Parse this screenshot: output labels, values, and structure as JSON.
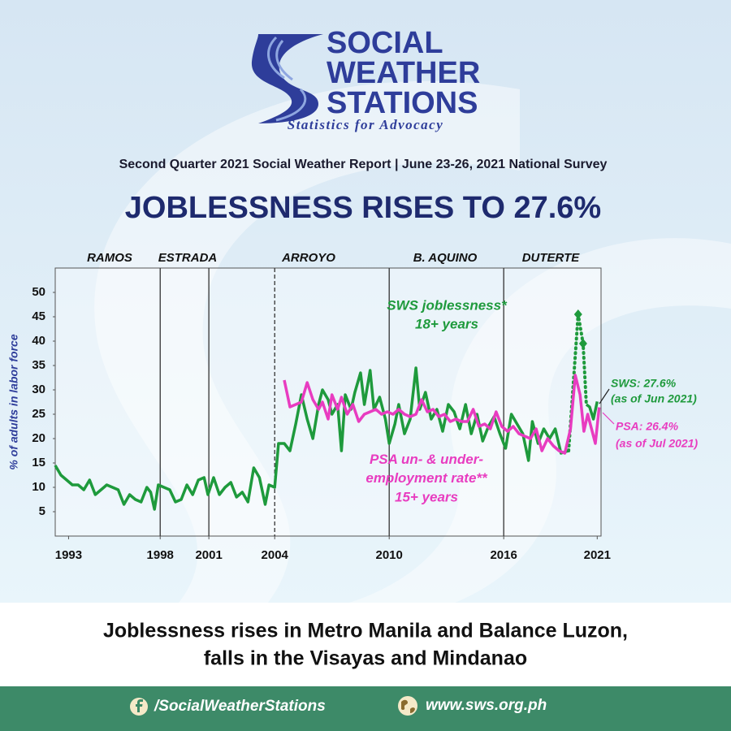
{
  "header": {
    "logo_lines": [
      "SOCIAL",
      "WEATHER",
      "STATIONS"
    ],
    "tagline": "Statistics for Advocacy"
  },
  "report_line": "Second Quarter 2021 Social Weather Report | June 23-26, 2021 National Survey",
  "headline": "JOBLESSNESS RISES TO 27.6%",
  "chart_data": {
    "type": "line",
    "ylabel": "% of adults in labor force",
    "xlim": [
      1993,
      2021.6
    ],
    "ylim": [
      0,
      55
    ],
    "xticks": [
      {
        "value": 1993.7,
        "label": "1993"
      },
      {
        "value": 1998.5,
        "label": "1998"
      },
      {
        "value": 2001.05,
        "label": "2001"
      },
      {
        "value": 2004.5,
        "label": "2004"
      },
      {
        "value": 2010.5,
        "label": "2010"
      },
      {
        "value": 2016.5,
        "label": "2016"
      },
      {
        "value": 2021.4,
        "label": "2021"
      }
    ],
    "yticks": [
      5,
      10,
      15,
      20,
      25,
      30,
      35,
      40,
      45,
      50
    ],
    "grid": false,
    "eras": [
      "RAMOS",
      "ESTRADA",
      "ARROYO",
      "B. AQUINO",
      "DUTERTE"
    ],
    "era_lines": [
      1998.5,
      2001.05,
      2004.5,
      2010.5,
      2016.5
    ],
    "era_line_dashed": [
      false,
      false,
      true,
      false,
      false
    ],
    "series": [
      {
        "name": "SWS joblessness*",
        "note": "18+ years",
        "color": "#1e9a3c",
        "end_label": "SWS: 27.6%",
        "end_note": "(as of Jun 2021)",
        "dotted_between": [
          95,
          98
        ],
        "x": [
          1993.0,
          1993.3,
          1993.6,
          1993.9,
          1994.2,
          1994.5,
          1994.8,
          1995.1,
          1995.4,
          1995.7,
          1996.0,
          1996.3,
          1996.6,
          1996.9,
          1997.2,
          1997.5,
          1997.8,
          1998.0,
          1998.2,
          1998.4,
          1998.7,
          1999.0,
          1999.3,
          1999.6,
          1999.9,
          2000.2,
          2000.5,
          2000.8,
          2001.0,
          2001.3,
          2001.6,
          2001.9,
          2002.2,
          2002.5,
          2002.8,
          2003.1,
          2003.4,
          2003.7,
          2004.0,
          2004.2,
          2004.5,
          2004.7,
          2005.0,
          2005.3,
          2005.6,
          2005.9,
          2006.2,
          2006.5,
          2006.8,
          2007.0,
          2007.3,
          2007.5,
          2007.8,
          2008.0,
          2008.2,
          2008.5,
          2008.7,
          2009.0,
          2009.2,
          2009.5,
          2009.7,
          2010.0,
          2010.3,
          2010.5,
          2010.8,
          2011.0,
          2011.3,
          2011.6,
          2011.9,
          2012.1,
          2012.4,
          2012.7,
          2013.0,
          2013.3,
          2013.6,
          2013.9,
          2014.2,
          2014.5,
          2014.8,
          2015.1,
          2015.4,
          2015.7,
          2016.0,
          2016.3,
          2016.6,
          2016.9,
          2017.2,
          2017.5,
          2017.8,
          2018.0,
          2018.3,
          2018.6,
          2018.9,
          2019.2,
          2019.5,
          2019.9,
          2020.4,
          2020.66,
          2020.83,
          2021.0,
          2021.2,
          2021.4
        ],
        "values": [
          14.5,
          12.5,
          11.5,
          10.5,
          10.5,
          9.5,
          11.5,
          8.5,
          9.5,
          10.5,
          10,
          9.5,
          6.5,
          8.5,
          7.5,
          7,
          10,
          9,
          5.5,
          10.5,
          10,
          9.5,
          7,
          7.5,
          10.5,
          8.5,
          11.5,
          12,
          8.5,
          12,
          8.5,
          10,
          11,
          8,
          9,
          7,
          14,
          12,
          6.5,
          10.5,
          10,
          19,
          19,
          17.5,
          23,
          29,
          24,
          20,
          27,
          30,
          28,
          25,
          27,
          17.5,
          29,
          26,
          29.5,
          33.5,
          27,
          34,
          26,
          28.5,
          24,
          19,
          23,
          27,
          21,
          24,
          34.5,
          26,
          29.5,
          24,
          26,
          21.5,
          27,
          25.5,
          22,
          27,
          21,
          25,
          19.5,
          22.5,
          24.5,
          21,
          18,
          25,
          23,
          21,
          15.5,
          23.5,
          19,
          22,
          20,
          22,
          17,
          17.5,
          45.5,
          39.5,
          27,
          26.5,
          24,
          27.6
        ]
      },
      {
        "name": "PSA un- & under-employment rate**",
        "note": "15+ years",
        "color": "#e83cc0",
        "end_label": "PSA: 26.4%",
        "end_note": "(as of Jul 2021)",
        "x": [
          2005.0,
          2005.3,
          2005.6,
          2005.9,
          2006.2,
          2006.5,
          2006.8,
          2007.0,
          2007.3,
          2007.5,
          2007.8,
          2008.0,
          2008.3,
          2008.6,
          2008.9,
          2009.2,
          2009.5,
          2009.8,
          2010.1,
          2010.4,
          2010.7,
          2011.0,
          2011.3,
          2011.6,
          2011.9,
          2012.2,
          2012.5,
          2012.8,
          2013.1,
          2013.4,
          2013.7,
          2014.0,
          2014.3,
          2014.6,
          2014.9,
          2015.2,
          2015.5,
          2015.8,
          2016.1,
          2016.4,
          2016.7,
          2017.0,
          2017.3,
          2017.6,
          2017.9,
          2018.2,
          2018.5,
          2018.8,
          2019.1,
          2019.4,
          2019.7,
          2020.0,
          2020.25,
          2020.5,
          2020.7,
          2020.9,
          2021.1,
          2021.3,
          2021.5
        ],
        "values": [
          32,
          26.5,
          27,
          27.5,
          31.5,
          28,
          26,
          27.5,
          24,
          29,
          26,
          28.5,
          25,
          27,
          23.5,
          25,
          25.5,
          26,
          25,
          25.5,
          25,
          26,
          25,
          24.5,
          25,
          28,
          25.5,
          26,
          24.5,
          25,
          23.5,
          24,
          23.5,
          23.5,
          26,
          22.5,
          23,
          22,
          25.5,
          22.5,
          21.5,
          22.5,
          21,
          20.5,
          20,
          22,
          17.5,
          20,
          18.5,
          17.5,
          17,
          22,
          33,
          29,
          21.5,
          25,
          22,
          19,
          26.4
        ]
      }
    ]
  },
  "caption": [
    "Joblessness rises in Metro Manila and Balance Luzon,",
    "falls in the Visayas and Mindanao"
  ],
  "footer": {
    "facebook": "/SocialWeatherStations",
    "website": "www.sws.org.ph"
  }
}
